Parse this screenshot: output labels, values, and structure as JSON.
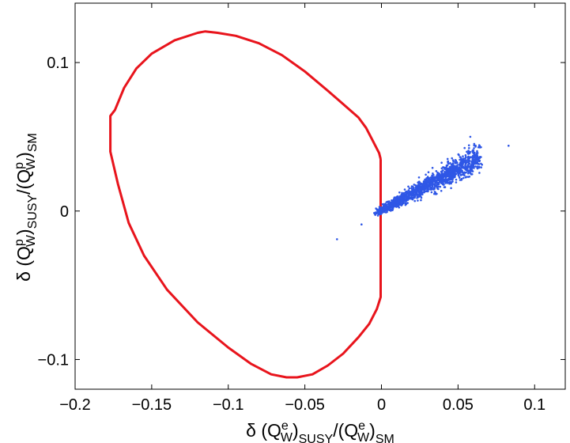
{
  "chart_data": {
    "type": "scatter",
    "xlabel": "δ (Q_W^e)_SUSY/(Q_W^e)_SM",
    "ylabel": "δ (Q_W^p)_SUSY/(Q_W^p)_SM",
    "xlabel_parts": {
      "delta": "δ (Q",
      "w1": "W",
      "e1": "e",
      "close1": ")",
      "susy": "SUSY",
      "slash": "/(Q",
      "w2": "W",
      "e2": "e",
      "close2": ")",
      "sm": "SM"
    },
    "ylabel_parts": {
      "delta": "δ (Q",
      "w1": "W",
      "p1": "p",
      "close1": ")",
      "susy": "SUSY",
      "slash": "/(Q",
      "w2": "W",
      "p2": "p",
      "close2": ")",
      "sm": "SM"
    },
    "xlim": [
      -0.2,
      0.12
    ],
    "ylim": [
      -0.12,
      0.14
    ],
    "xticks": [
      -0.2,
      -0.15,
      -0.1,
      -0.05,
      0,
      0.05,
      0.1
    ],
    "xtick_labels": [
      "−0.2",
      "−0.15",
      "−0.1",
      "−0.05",
      "0",
      "0.05",
      "0.1"
    ],
    "yticks": [
      -0.1,
      0,
      0.1
    ],
    "ytick_labels": [
      "−0.1",
      "0",
      "0.1"
    ],
    "grid": false,
    "colors": {
      "contour": "#e8141c",
      "points": "#2f57e6"
    },
    "contour": [
      [
        -0.0005,
        0.035
      ],
      [
        -0.0015,
        0.039
      ],
      [
        -0.006,
        0.048
      ],
      [
        -0.01,
        0.056
      ],
      [
        -0.015,
        0.063
      ],
      [
        -0.025,
        0.072
      ],
      [
        -0.035,
        0.081
      ],
      [
        -0.05,
        0.094
      ],
      [
        -0.065,
        0.105
      ],
      [
        -0.08,
        0.113
      ],
      [
        -0.095,
        0.118
      ],
      [
        -0.107,
        0.12
      ],
      [
        -0.115,
        0.121
      ],
      [
        -0.12,
        0.12
      ],
      [
        -0.135,
        0.115
      ],
      [
        -0.15,
        0.106
      ],
      [
        -0.16,
        0.096
      ],
      [
        -0.168,
        0.083
      ],
      [
        -0.174,
        0.068
      ],
      [
        -0.177,
        0.064
      ],
      [
        -0.177,
        0.04
      ],
      [
        -0.172,
        0.018
      ],
      [
        -0.165,
        -0.008
      ],
      [
        -0.155,
        -0.03
      ],
      [
        -0.14,
        -0.053
      ],
      [
        -0.12,
        -0.075
      ],
      [
        -0.1,
        -0.092
      ],
      [
        -0.085,
        -0.103
      ],
      [
        -0.072,
        -0.11
      ],
      [
        -0.062,
        -0.112
      ],
      [
        -0.055,
        -0.112
      ],
      [
        -0.045,
        -0.11
      ],
      [
        -0.035,
        -0.104
      ],
      [
        -0.025,
        -0.096
      ],
      [
        -0.015,
        -0.085
      ],
      [
        -0.008,
        -0.076
      ],
      [
        -0.003,
        -0.066
      ],
      [
        -0.0005,
        -0.058
      ],
      [
        -0.0005,
        -0.045
      ],
      [
        -0.0005,
        0.0
      ],
      [
        -0.0005,
        0.035
      ]
    ],
    "points": {
      "count": 1400,
      "x_range": [
        -0.004,
        0.083
      ],
      "trend_slope": 0.56,
      "outliers": [
        [
          -0.029,
          -0.019
        ],
        [
          -0.013,
          -0.009
        ],
        [
          0.083,
          0.044
        ],
        [
          0.058,
          0.05
        ]
      ]
    }
  }
}
